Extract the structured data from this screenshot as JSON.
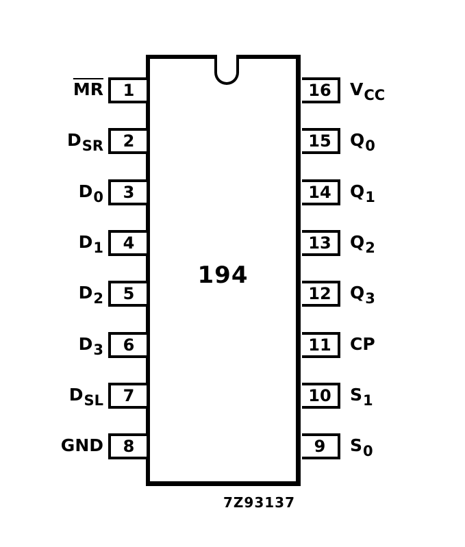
{
  "chip": {
    "label": "194",
    "reference": "7Z93137"
  },
  "pins_left": [
    {
      "number": "1",
      "signal": "MR",
      "sub": "",
      "overline": true
    },
    {
      "number": "2",
      "signal": "D",
      "sub": "SR",
      "overline": false
    },
    {
      "number": "3",
      "signal": "D",
      "sub": "0",
      "overline": false
    },
    {
      "number": "4",
      "signal": "D",
      "sub": "1",
      "overline": false
    },
    {
      "number": "5",
      "signal": "D",
      "sub": "2",
      "overline": false
    },
    {
      "number": "6",
      "signal": "D",
      "sub": "3",
      "overline": false
    },
    {
      "number": "7",
      "signal": "D",
      "sub": "SL",
      "overline": false
    },
    {
      "number": "8",
      "signal": "GND",
      "sub": "",
      "overline": false
    }
  ],
  "pins_right": [
    {
      "number": "16",
      "signal": "V",
      "sub": "CC",
      "overline": false
    },
    {
      "number": "15",
      "signal": "Q",
      "sub": "0",
      "overline": false
    },
    {
      "number": "14",
      "signal": "Q",
      "sub": "1",
      "overline": false
    },
    {
      "number": "13",
      "signal": "Q",
      "sub": "2",
      "overline": false
    },
    {
      "number": "12",
      "signal": "Q",
      "sub": "3",
      "overline": false
    },
    {
      "number": "11",
      "signal": "CP",
      "sub": "",
      "overline": false
    },
    {
      "number": "10",
      "signal": "S",
      "sub": "1",
      "overline": false
    },
    {
      "number": "9",
      "signal": "S",
      "sub": "0",
      "overline": false
    }
  ]
}
